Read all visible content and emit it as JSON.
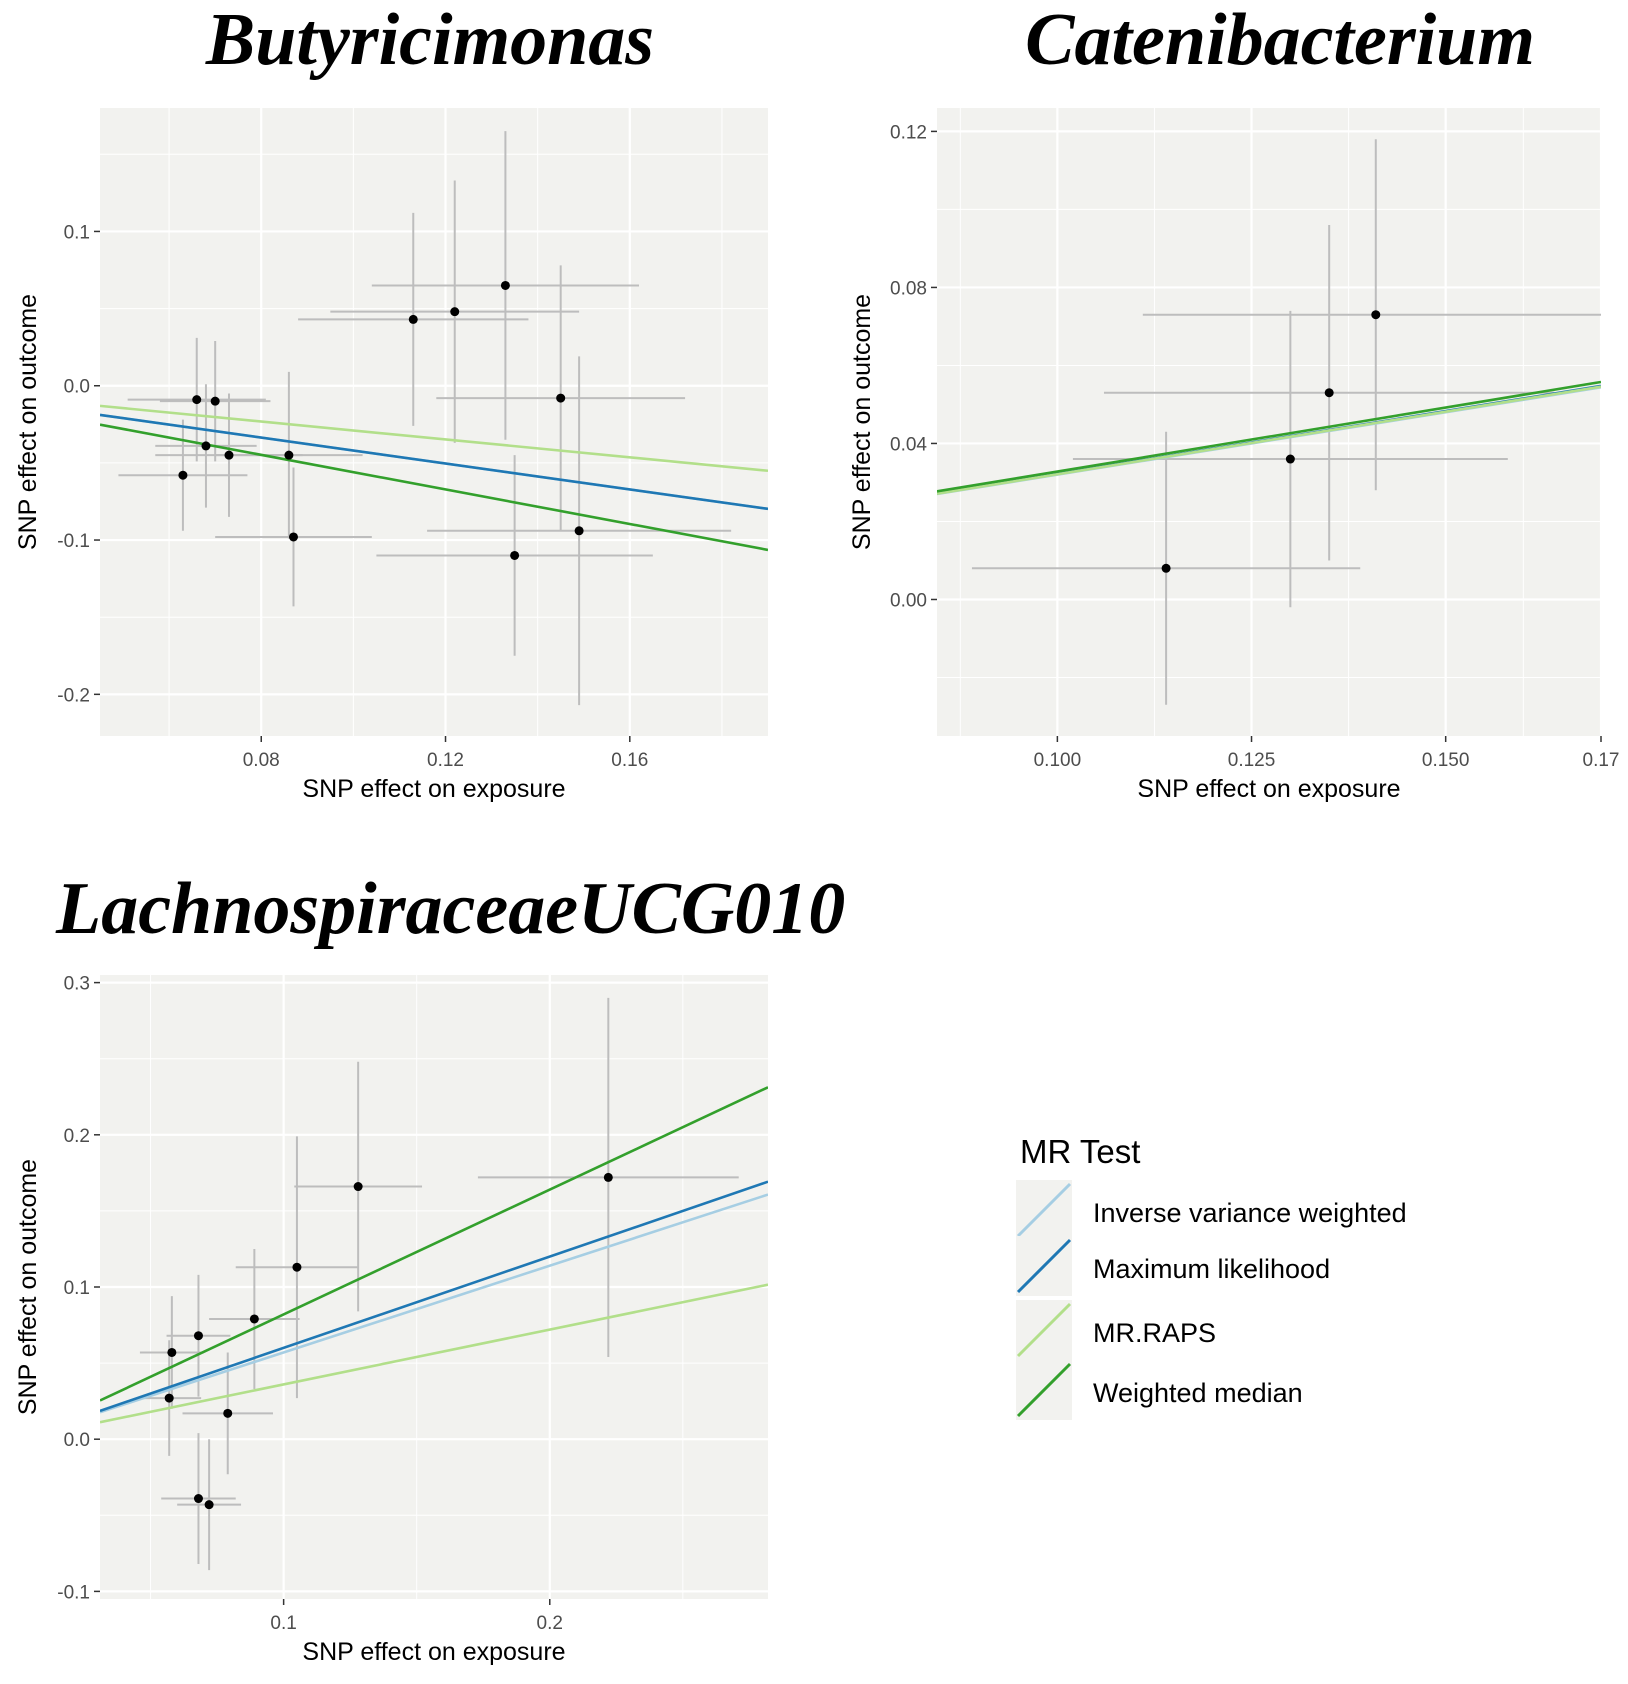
{
  "chart_data": [
    {
      "type": "scatter",
      "title": "Butyricimonas",
      "xlabel": "SNP effect on exposure",
      "ylabel": "SNP effect on outcome",
      "xlim": [
        0.045,
        0.19
      ],
      "ylim": [
        -0.227,
        0.18
      ],
      "xticks": [
        0.08,
        0.12,
        0.16
      ],
      "xtick_labels": [
        "0.08",
        "0.12",
        "0.16"
      ],
      "yticks": [
        -0.2,
        -0.1,
        0.0,
        0.1
      ],
      "ytick_labels": [
        "-0.2",
        "-0.1",
        "0.0",
        "0.1"
      ],
      "points": [
        {
          "x": 0.063,
          "y": -0.058,
          "xerr": 0.014,
          "yerr": 0.036
        },
        {
          "x": 0.066,
          "y": -0.009,
          "xerr": 0.015,
          "yerr": 0.04
        },
        {
          "x": 0.068,
          "y": -0.039,
          "xerr": 0.011,
          "yerr": 0.04
        },
        {
          "x": 0.07,
          "y": -0.01,
          "xerr": 0.012,
          "yerr": 0.039
        },
        {
          "x": 0.073,
          "y": -0.045,
          "xerr": 0.016,
          "yerr": 0.04
        },
        {
          "x": 0.086,
          "y": -0.045,
          "xerr": 0.016,
          "yerr": 0.054
        },
        {
          "x": 0.087,
          "y": -0.098,
          "xerr": 0.017,
          "yerr": 0.045
        },
        {
          "x": 0.113,
          "y": 0.043,
          "xerr": 0.025,
          "yerr": 0.069
        },
        {
          "x": 0.122,
          "y": 0.048,
          "xerr": 0.027,
          "yerr": 0.085
        },
        {
          "x": 0.133,
          "y": 0.065,
          "xerr": 0.029,
          "yerr": 0.1
        },
        {
          "x": 0.135,
          "y": -0.11,
          "xerr": 0.03,
          "yerr": 0.065
        },
        {
          "x": 0.145,
          "y": -0.008,
          "xerr": 0.027,
          "yerr": 0.086
        },
        {
          "x": 0.149,
          "y": -0.094,
          "xerr": 0.033,
          "yerr": 0.113
        }
      ],
      "series": [
        {
          "name": "Inverse variance weighted",
          "color": "#a6cee3",
          "intercept": 0.0,
          "slope": -0.42
        },
        {
          "name": "Maximum likelihood",
          "color": "#1f78b4",
          "intercept": 0.0,
          "slope": -0.42
        },
        {
          "name": "MR.RAPS",
          "color": "#b2df8a",
          "intercept": 0.0,
          "slope": -0.29
        },
        {
          "name": "Weighted median",
          "color": "#33a02c",
          "intercept": 0.0,
          "slope": -0.56
        }
      ]
    },
    {
      "type": "scatter",
      "title": "Catenibacterium",
      "xlabel": "SNP effect on exposure",
      "ylabel": "SNP effect on outcome",
      "xlim": [
        0.0845,
        0.17
      ],
      "ylim": [
        -0.035,
        0.126
      ],
      "xticks": [
        0.1,
        0.125,
        0.15,
        0.17
      ],
      "xtick_labels": [
        "0.100",
        "0.125",
        "0.150",
        "0.17"
      ],
      "yticks": [
        0.0,
        0.04,
        0.08,
        0.12
      ],
      "ytick_labels": [
        "0.00",
        "0.04",
        "0.08",
        "0.12"
      ],
      "points": [
        {
          "x": 0.114,
          "y": 0.008,
          "xerr": 0.025,
          "yerr": 0.035
        },
        {
          "x": 0.13,
          "y": 0.036,
          "xerr": 0.028,
          "yerr": 0.038
        },
        {
          "x": 0.135,
          "y": 0.053,
          "xerr": 0.029,
          "yerr": 0.043
        },
        {
          "x": 0.141,
          "y": 0.073,
          "xerr": 0.03,
          "yerr": 0.045
        }
      ],
      "series": [
        {
          "name": "Inverse variance weighted",
          "color": "#a6cee3",
          "intercept": 0.0,
          "slope": 0.32
        },
        {
          "name": "Maximum likelihood",
          "color": "#1f78b4",
          "intercept": 0.0,
          "slope": 0.322
        },
        {
          "name": "MR.RAPS",
          "color": "#b2df8a",
          "intercept": 0.0,
          "slope": 0.321
        },
        {
          "name": "Weighted median",
          "color": "#33a02c",
          "intercept": 0.0,
          "slope": 0.328
        }
      ]
    },
    {
      "type": "scatter",
      "title": "LachnospiraceaeUCG010",
      "xlabel": "SNP effect on exposure",
      "ylabel": "SNP effect on outcome",
      "xlim": [
        0.031,
        0.282
      ],
      "ylim": [
        -0.105,
        0.305
      ],
      "xticks": [
        0.1,
        0.2
      ],
      "xtick_labels": [
        "0.1",
        "0.2"
      ],
      "yticks": [
        -0.1,
        0.0,
        0.1,
        0.2,
        0.3
      ],
      "ytick_labels": [
        "-0.1",
        "0.0",
        "0.1",
        "0.2",
        "0.3"
      ],
      "points": [
        {
          "x": 0.057,
          "y": 0.027,
          "xerr": 0.012,
          "yerr": 0.038
        },
        {
          "x": 0.058,
          "y": 0.057,
          "xerr": 0.012,
          "yerr": 0.037
        },
        {
          "x": 0.068,
          "y": 0.068,
          "xerr": 0.012,
          "yerr": 0.04
        },
        {
          "x": 0.068,
          "y": -0.039,
          "xerr": 0.014,
          "yerr": 0.043
        },
        {
          "x": 0.072,
          "y": -0.043,
          "xerr": 0.012,
          "yerr": 0.043
        },
        {
          "x": 0.079,
          "y": 0.017,
          "xerr": 0.017,
          "yerr": 0.04
        },
        {
          "x": 0.089,
          "y": 0.079,
          "xerr": 0.017,
          "yerr": 0.046
        },
        {
          "x": 0.105,
          "y": 0.113,
          "xerr": 0.023,
          "yerr": 0.086
        },
        {
          "x": 0.128,
          "y": 0.166,
          "xerr": 0.024,
          "yerr": 0.082
        },
        {
          "x": 0.222,
          "y": 0.172,
          "xerr": 0.049,
          "yerr": 0.118
        }
      ],
      "series": [
        {
          "name": "Inverse variance weighted",
          "color": "#a6cee3",
          "intercept": 0.0,
          "slope": 0.57
        },
        {
          "name": "Maximum likelihood",
          "color": "#1f78b4",
          "intercept": 0.0,
          "slope": 0.6
        },
        {
          "name": "MR.RAPS",
          "color": "#b2df8a",
          "intercept": 0.0,
          "slope": 0.36
        },
        {
          "name": "Weighted median",
          "color": "#33a02c",
          "intercept": 0.0,
          "slope": 0.82
        }
      ]
    }
  ],
  "legend": {
    "title": "MR Test",
    "items": [
      {
        "label": "Inverse variance weighted",
        "color": "#a6cee3"
      },
      {
        "label": "Maximum likelihood",
        "color": "#1f78b4"
      },
      {
        "label": "MR.RAPS",
        "color": "#b2df8a"
      },
      {
        "label": "Weighted median",
        "color": "#33a02c"
      }
    ]
  }
}
